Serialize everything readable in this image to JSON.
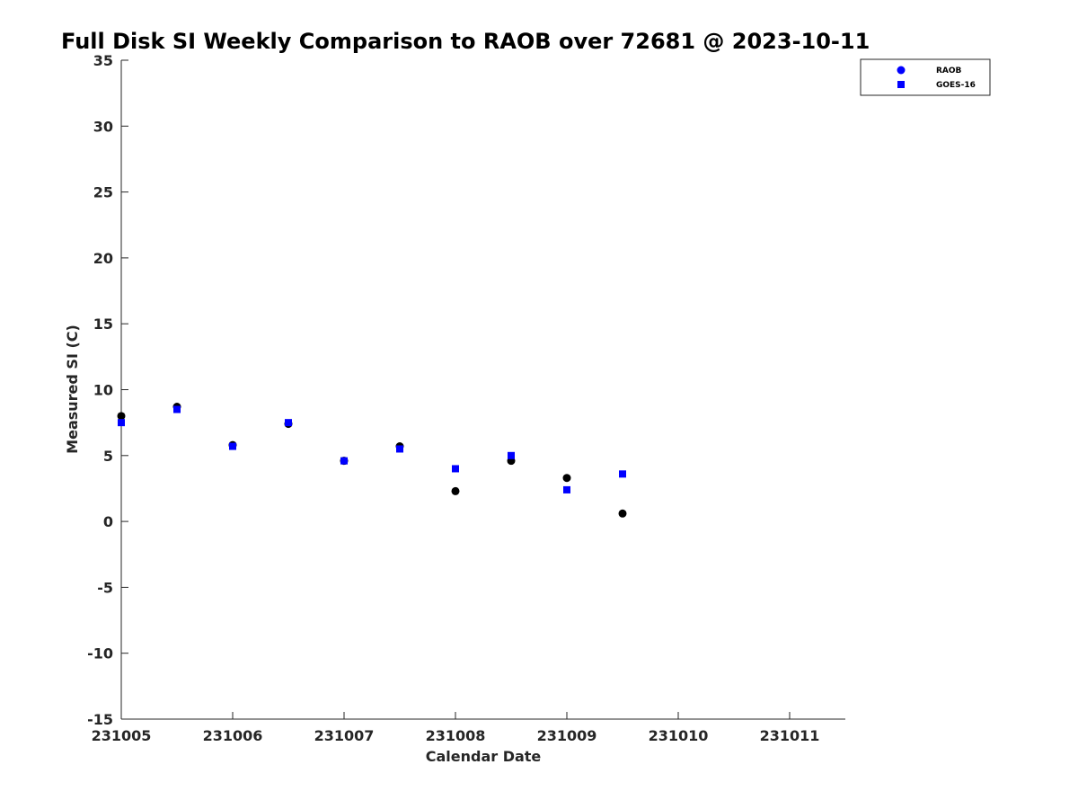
{
  "chart_data": {
    "type": "scatter",
    "title": "Full Disk SI Weekly Comparison to RAOB over 72681 @ 2023-10-11",
    "xlabel": "Calendar Date",
    "ylabel": "Measured SI (C)",
    "xlim": [
      231005,
      231011.5
    ],
    "ylim": [
      -15,
      35
    ],
    "x_ticks": [
      231005,
      231006,
      231007,
      231008,
      231009,
      231010,
      231011
    ],
    "x_tick_labels": [
      "231005",
      "231006",
      "231007",
      "231008",
      "231009",
      "231010",
      "231011"
    ],
    "y_ticks": [
      -15,
      -10,
      -5,
      0,
      5,
      10,
      15,
      20,
      25,
      30,
      35
    ],
    "y_tick_labels": [
      "-15",
      "-10",
      "-5",
      "0",
      "5",
      "10",
      "15",
      "20",
      "25",
      "30",
      "35"
    ],
    "grid": false,
    "legend_position": "top-right",
    "series": [
      {
        "name": "RAOB",
        "marker": "circle",
        "color": "#000000",
        "legend_color": "#0000ff",
        "x": [
          231005,
          231005.5,
          231006,
          231006.5,
          231007,
          231007.5,
          231008,
          231008.5,
          231009,
          231009.5
        ],
        "y": [
          8.0,
          8.7,
          5.8,
          7.4,
          4.6,
          5.7,
          2.3,
          4.6,
          3.3,
          0.6
        ]
      },
      {
        "name": "GOES-16",
        "marker": "square",
        "color": "#0000ff",
        "x": [
          231005,
          231005.5,
          231006,
          231006.5,
          231007,
          231007.5,
          231008,
          231008.5,
          231009,
          231009.5
        ],
        "y": [
          7.5,
          8.5,
          5.7,
          7.5,
          4.6,
          5.5,
          4.0,
          5.0,
          2.4,
          3.6
        ]
      }
    ]
  }
}
